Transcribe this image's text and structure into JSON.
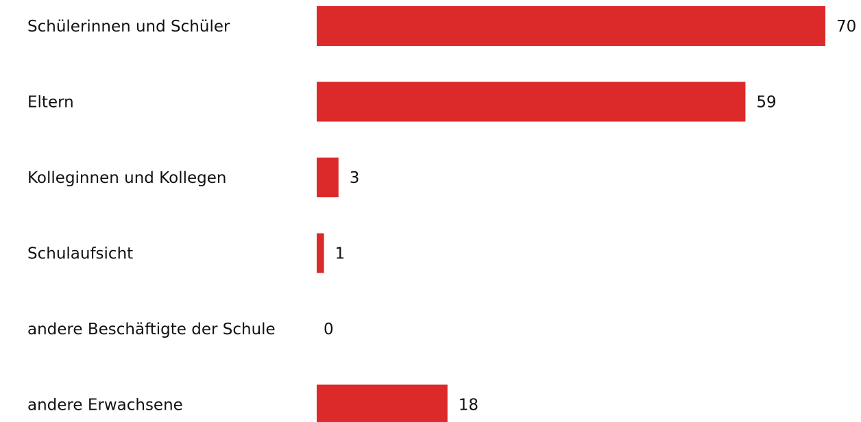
{
  "chart_data": {
    "type": "bar",
    "orientation": "horizontal",
    "categories": [
      "Schülerinnen und Schüler",
      "Eltern",
      "Kolleginnen und Kollegen",
      "Schulaufsicht",
      "andere Beschäftigte der Schule",
      "andere Erwachsene"
    ],
    "values": [
      70,
      59,
      3,
      1,
      0,
      18
    ],
    "title": "",
    "xlabel": "",
    "ylabel": "",
    "xlim": [
      0,
      70
    ],
    "grid": false,
    "bar_color": "#dc2a2a"
  }
}
